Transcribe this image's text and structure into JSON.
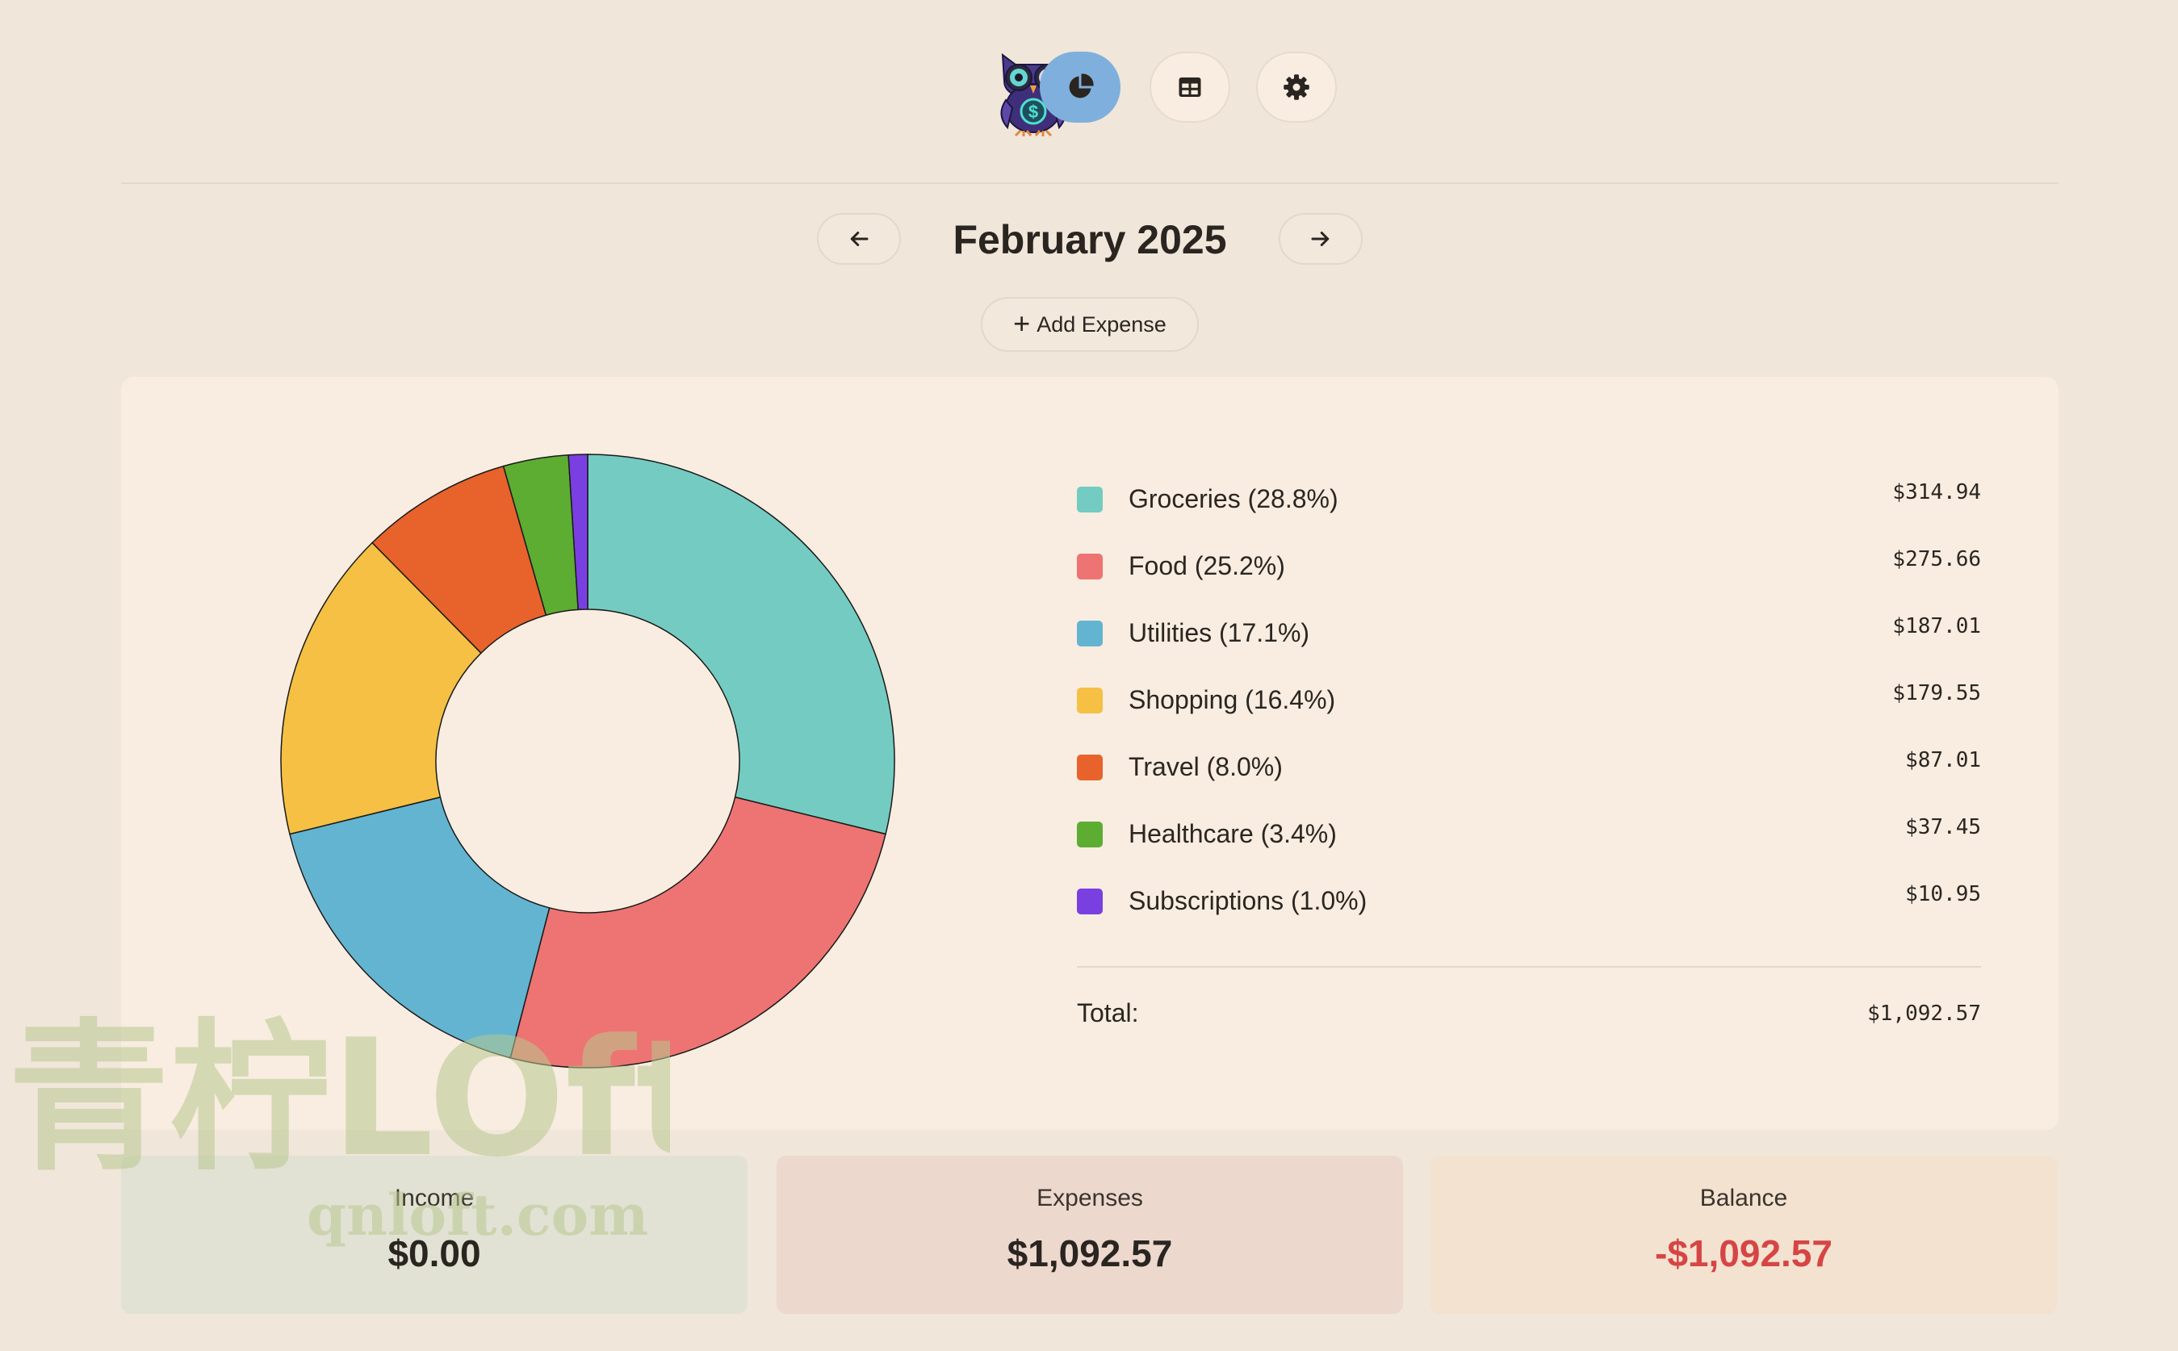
{
  "header": {
    "logo_icon": "owl-money-logo-icon",
    "nav": [
      {
        "icon": "pie-chart-icon",
        "active": true
      },
      {
        "icon": "table-icon",
        "active": false
      },
      {
        "icon": "gear-icon",
        "active": false
      }
    ]
  },
  "month_nav": {
    "title": "February 2025",
    "prev_icon": "arrow-left-icon",
    "next_icon": "arrow-right-icon"
  },
  "add_expense": {
    "plus": "+",
    "label": "Add Expense"
  },
  "chart_data": {
    "type": "pie",
    "variant": "donut",
    "categories": [
      "Groceries",
      "Food",
      "Utilities",
      "Shopping",
      "Travel",
      "Healthcare",
      "Subscriptions"
    ],
    "values": [
      314.94,
      275.66,
      187.01,
      179.55,
      87.01,
      37.45,
      10.95
    ],
    "percent_labels": [
      "(28.8%)",
      "(25.2%)",
      "(17.1%)",
      "(16.4%)",
      "(8.0%)",
      "(3.4%)",
      "(1.0%)"
    ],
    "value_labels": [
      "$314.94",
      "$275.66",
      "$187.01",
      "$179.55",
      "$87.01",
      "$37.45",
      "$10.95"
    ],
    "colors": [
      "#74cbc2",
      "#ed7472",
      "#63b4d1",
      "#f5c044",
      "#e8622c",
      "#5cad32",
      "#7a3fe0"
    ],
    "total_label": "Total:",
    "total_value": "$1,092.57",
    "legend_position": "right"
  },
  "summary": {
    "income": {
      "label": "Income",
      "value": "$0.00"
    },
    "expenses": {
      "label": "Expenses",
      "value": "$1,092.57"
    },
    "balance": {
      "label": "Balance",
      "value": "-$1,092.57",
      "color": "#d64545"
    }
  },
  "watermark": {
    "text_cn": "青柠LOft",
    "url": "qnloft.com"
  }
}
